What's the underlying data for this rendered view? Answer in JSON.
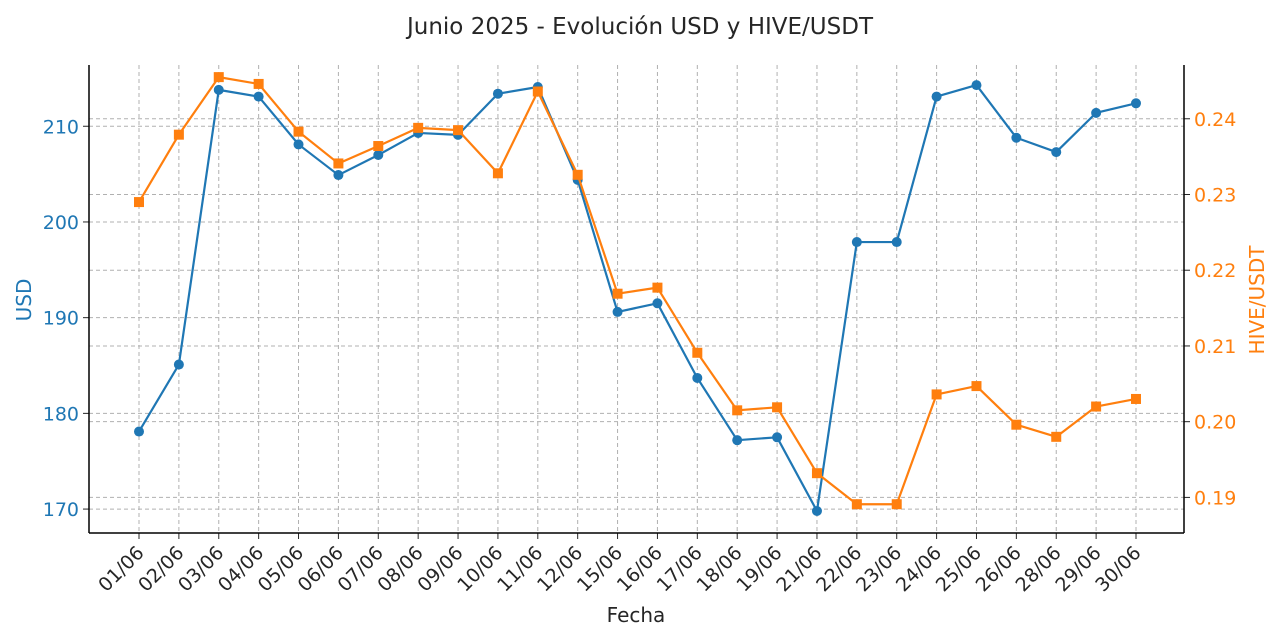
{
  "chart_data": {
    "type": "line",
    "title": "Junio 2025 - Evolución USD y HIVE/USDT",
    "xlabel": "Fecha",
    "ylabel_left": "USD",
    "ylabel_right": "HIVE/USDT",
    "categories": [
      "01/06",
      "02/06",
      "03/06",
      "04/06",
      "05/06",
      "06/06",
      "07/06",
      "08/06",
      "09/06",
      "10/06",
      "11/06",
      "12/06",
      "15/06",
      "16/06",
      "17/06",
      "18/06",
      "19/06",
      "21/06",
      "22/06",
      "23/06",
      "24/06",
      "25/06",
      "26/06",
      "28/06",
      "29/06",
      "30/06"
    ],
    "series": [
      {
        "axis": "left",
        "color": "#1f77b4",
        "marker": "circle",
        "values": [
          178.1,
          185.1,
          213.8,
          213.1,
          208.1,
          204.9,
          207.0,
          209.3,
          209.1,
          213.4,
          214.1,
          204.4,
          190.6,
          191.5,
          183.7,
          177.2,
          177.5,
          169.8,
          197.9,
          197.9,
          213.1,
          214.3,
          208.8,
          207.3,
          211.4,
          212.4
        ]
      },
      {
        "axis": "right",
        "color": "#ff7f0e",
        "marker": "square",
        "values": [
          0.229,
          0.2379,
          0.2455,
          0.2446,
          0.2383,
          0.2341,
          0.2364,
          0.2388,
          0.2385,
          0.2328,
          0.2436,
          0.2326,
          0.2169,
          0.2177,
          0.2091,
          0.2015,
          0.2019,
          0.1932,
          0.1891,
          0.1891,
          0.2036,
          0.2047,
          0.1996,
          0.198,
          0.202,
          0.203
        ]
      }
    ],
    "ylim_left": [
      167.5,
      216.4
    ],
    "yticks_left": [
      170,
      180,
      190,
      200,
      210
    ],
    "ylim_right": [
      0.1853,
      0.2471
    ],
    "yticks_right": [
      "0.19",
      "0.20",
      "0.21",
      "0.22",
      "0.23",
      "0.24"
    ],
    "grid": true
  }
}
